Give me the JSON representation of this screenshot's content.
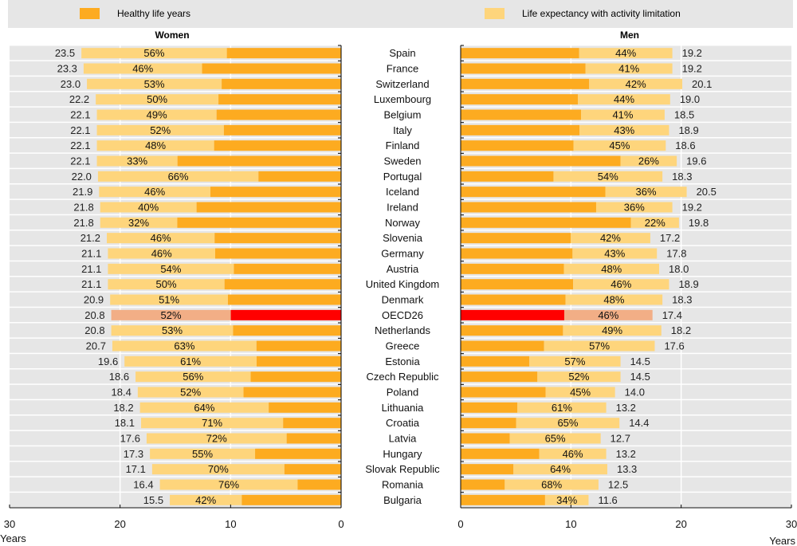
{
  "legend": {
    "healthy": {
      "label": "Healthy life years",
      "color": "#fdab20"
    },
    "limitation": {
      "label": "Life expectancy with activity limitation",
      "color": "#fed57c"
    }
  },
  "panels": {
    "women_title": "Women",
    "men_title": "Men"
  },
  "colors": {
    "healthy": "#fdab20",
    "limitation": "#fed57c",
    "oecd_healthy": "#ff0000",
    "oecd_limitation": "#f2ae86",
    "row_bg": "#e6e6e6",
    "gridline": "#ffffff"
  },
  "axis": {
    "ticks_women": [
      "30",
      "20",
      "10",
      "0"
    ],
    "ticks_men": [
      "0",
      "10",
      "20",
      "30"
    ],
    "unit_label": "Years"
  },
  "chart_data": {
    "type": "bar",
    "title": "",
    "xlabel": "Years",
    "ylabel": "",
    "xlim": [
      0,
      30
    ],
    "orientation": "horizontal",
    "stacked": true,
    "grid": true,
    "legend_position": "top",
    "highlight": "OECD26",
    "categories": [
      "Spain",
      "France",
      "Switzerland",
      "Luxembourg",
      "Belgium",
      "Italy",
      "Finland",
      "Sweden",
      "Portugal",
      "Iceland",
      "Ireland",
      "Norway",
      "Slovenia",
      "Germany",
      "Austria",
      "United Kingdom",
      "Denmark",
      "OECD26",
      "Netherlands",
      "Greece",
      "Estonia",
      "Czech Republic",
      "Poland",
      "Lithuania",
      "Croatia",
      "Latvia",
      "Hungary",
      "Slovak Republic",
      "Romania",
      "Bulgaria"
    ],
    "women": {
      "total_life_expectancy": [
        23.5,
        23.3,
        23.0,
        22.2,
        22.1,
        22.1,
        22.1,
        22.1,
        22.0,
        21.9,
        21.8,
        21.8,
        21.2,
        21.1,
        21.1,
        21.1,
        20.9,
        20.8,
        20.8,
        20.7,
        19.6,
        18.6,
        18.4,
        18.2,
        18.1,
        17.6,
        17.3,
        17.1,
        16.4,
        15.5
      ],
      "activity_limitation_share_pct": [
        56,
        46,
        53,
        50,
        49,
        52,
        48,
        33,
        66,
        46,
        40,
        32,
        46,
        46,
        54,
        50,
        51,
        52,
        53,
        63,
        61,
        56,
        52,
        64,
        71,
        72,
        55,
        70,
        76,
        42
      ]
    },
    "men": {
      "total_life_expectancy": [
        19.2,
        19.2,
        20.1,
        19.0,
        18.5,
        18.9,
        18.6,
        19.6,
        18.3,
        20.5,
        19.2,
        19.8,
        17.2,
        17.8,
        18.0,
        18.9,
        18.3,
        17.4,
        18.2,
        17.6,
        14.5,
        14.5,
        14.0,
        13.2,
        14.4,
        12.7,
        13.2,
        13.3,
        12.5,
        11.6
      ],
      "activity_limitation_share_pct": [
        44,
        41,
        42,
        44,
        41,
        43,
        45,
        26,
        54,
        36,
        36,
        22,
        42,
        43,
        48,
        46,
        48,
        46,
        49,
        57,
        57,
        52,
        45,
        61,
        65,
        65,
        46,
        64,
        68,
        34
      ]
    },
    "series": [
      {
        "name": "Healthy life years"
      },
      {
        "name": "Life expectancy with activity limitation"
      }
    ]
  }
}
